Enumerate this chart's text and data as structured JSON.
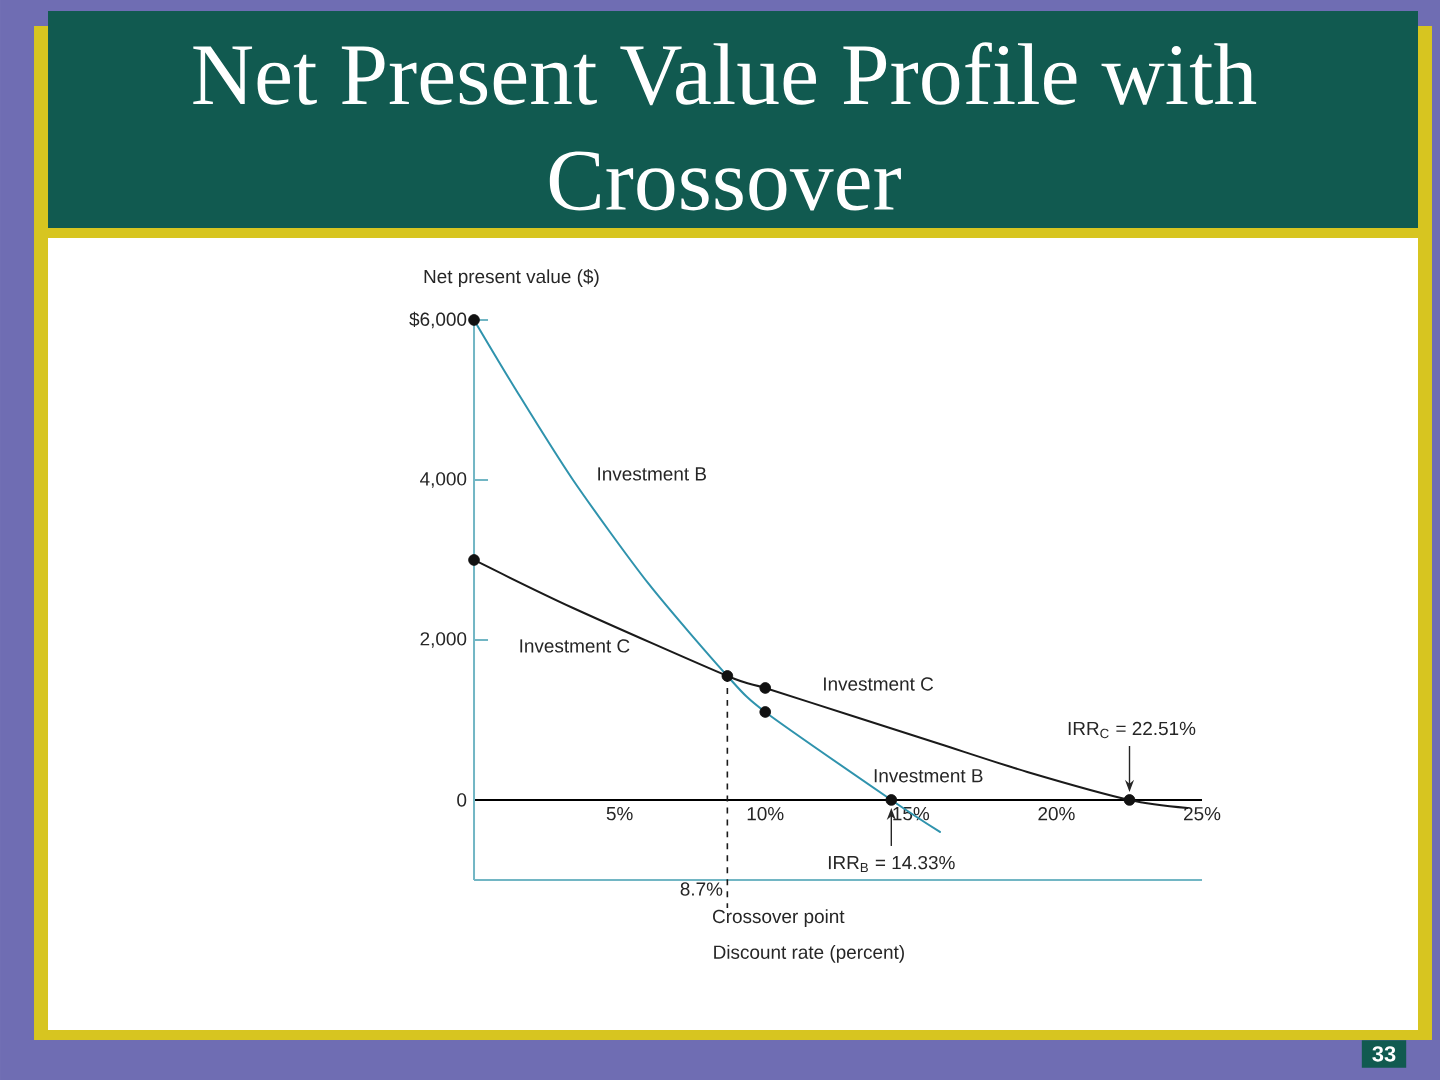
{
  "chart_data": {
    "type": "line",
    "title": "Net Present Value Profile with Crossover",
    "xlabel": "Discount rate (percent)",
    "ylabel": "Net present value ($)",
    "xlim": [
      0,
      25
    ],
    "ylim": [
      -1000,
      6000
    ],
    "xticks": [
      {
        "value": 5,
        "label": "5%"
      },
      {
        "value": 10,
        "label": "10%"
      },
      {
        "value": 15,
        "label": "15%"
      },
      {
        "value": 20,
        "label": "20%"
      },
      {
        "value": 25,
        "label": "25%"
      }
    ],
    "yticks": [
      0,
      {
        "value": 2000,
        "label": "2,000"
      },
      {
        "value": 4000,
        "label": "4,000"
      },
      {
        "value": 6000,
        "label": "$6,000"
      }
    ],
    "series": [
      {
        "name": "Investment B",
        "color": "#2f93ad",
        "x": [
          0,
          1.4,
          3.4,
          6,
          8.7,
          10,
          14.33,
          16
        ],
        "values": [
          6000,
          5150,
          4000,
          2700,
          1550,
          1100,
          0,
          -400
        ]
      },
      {
        "name": "Investment C",
        "color": "#1a1a1a",
        "x": [
          0,
          3.4,
          8.7,
          10,
          13,
          16,
          19,
          22.51,
          24.5
        ],
        "values": [
          3000,
          2400,
          1550,
          1400,
          1050,
          700,
          350,
          0,
          -100
        ]
      },
      {
        "type": "scatter",
        "color": "#111111",
        "marker": "circle",
        "x": [
          0,
          0,
          8.7,
          10,
          10,
          14.33,
          22.51
        ],
        "values": [
          6000,
          3000,
          1550,
          1100,
          1400,
          0,
          0
        ]
      }
    ],
    "ref_lines": [
      {
        "axis": "x",
        "value": 8.7,
        "label": "8.7%",
        "line_style": "dashed",
        "color": "#1a1a1a"
      }
    ],
    "annotations": [
      "Investment B",
      "Investment C",
      {
        "text": "IRR$_{C}$ = 22.51%",
        "x": 22.51,
        "y": 0
      },
      {
        "text": "IRR$_{B}$ = 14.33%",
        "x": 14.33,
        "y": 0
      },
      "Crossover point",
      "33"
    ]
  }
}
